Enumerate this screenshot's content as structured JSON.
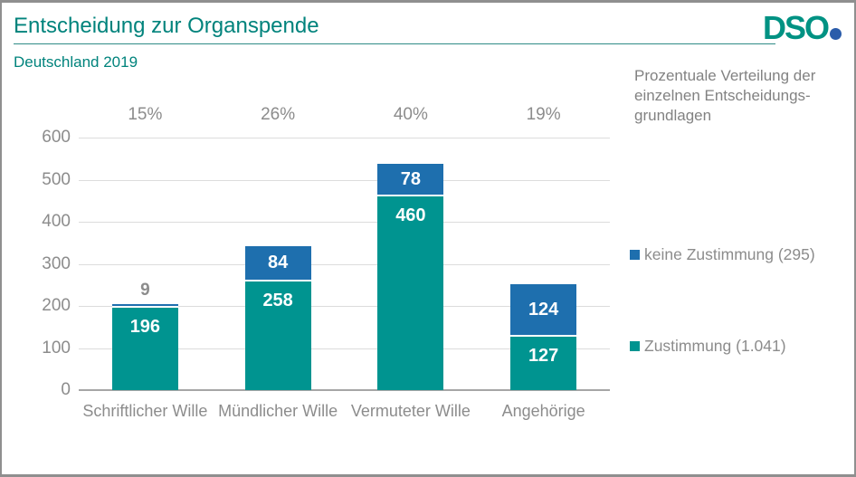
{
  "header": {
    "title": "Entscheidung zur Organspende",
    "subtitle": "Deutschland 2019"
  },
  "logo": {
    "text": "DSO"
  },
  "description": {
    "lines": [
      "Prozentuale Verteilung der",
      "einzelnen Entscheidungs-",
      "grundlagen"
    ]
  },
  "legend": {
    "items": [
      {
        "label": "keine Zustimmung (295)",
        "color": "#1e6fae"
      },
      {
        "label": "Zustimmung (1.041)",
        "color": "#009490"
      }
    ]
  },
  "chart_data": {
    "type": "bar",
    "stacked": true,
    "title": "Entscheidung zur Organspende",
    "subtitle": "Deutschland 2019",
    "categories": [
      "Schriftlicher Wille",
      "Mündlicher Wille",
      "Vermuteter Wille",
      "Angehörige"
    ],
    "series": [
      {
        "name": "Zustimmung (1.041)",
        "color": "#009490",
        "values": [
          196,
          258,
          460,
          127
        ]
      },
      {
        "name": "keine Zustimmung (295)",
        "color": "#1e6fae",
        "values": [
          9,
          84,
          78,
          124
        ]
      }
    ],
    "percent_labels": [
      "15%",
      "26%",
      "40%",
      "19%"
    ],
    "totals_percent": [
      15,
      26,
      40,
      19
    ],
    "ylim": [
      0,
      600
    ],
    "y_ticks": [
      0,
      100,
      200,
      300,
      400,
      500,
      600
    ],
    "grid": true,
    "legend_position": "right"
  },
  "colors": {
    "teal_bar": "#009490",
    "blue_bar": "#1e6fae",
    "title_teal": "#00837c",
    "text_gray": "#8c8c8c",
    "grid_line": "#dcdcdc",
    "axis_line": "#a6a6a6",
    "frame_border": "#8f8f8f",
    "logo_teal": "#009283",
    "logo_dot_blue": "#2a5caa",
    "background": "#ffffff"
  }
}
